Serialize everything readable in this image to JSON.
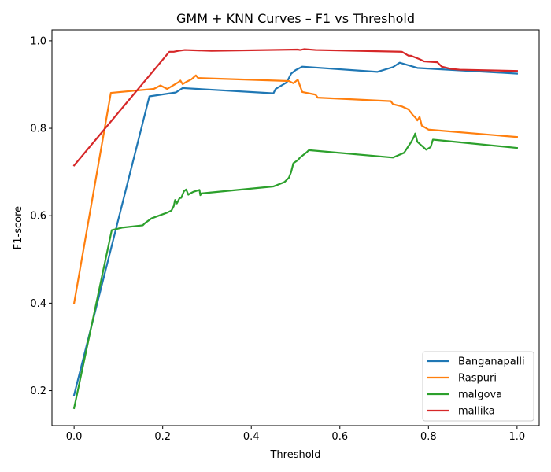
{
  "chart_data": {
    "type": "line",
    "title": "GMM + KNN Curves – F1 vs Threshold",
    "xlabel": "Threshold",
    "ylabel": "F1-score",
    "xlim": [
      -0.05,
      1.05
    ],
    "ylim": [
      0.12,
      1.025
    ],
    "xticks": [
      0.0,
      0.2,
      0.4,
      0.6,
      0.8,
      1.0
    ],
    "xtick_labels": [
      "0.0",
      "0.2",
      "0.4",
      "0.6",
      "0.8",
      "1.0"
    ],
    "yticks": [
      0.2,
      0.4,
      0.6,
      0.8,
      1.0
    ],
    "ytick_labels": [
      "0.2",
      "0.4",
      "0.6",
      "0.8",
      "1.0"
    ],
    "grid": false,
    "legend_position": "lower-right",
    "series": [
      {
        "name": "Banganapalli",
        "color": "#1f77b4",
        "x": [
          0.0,
          0.17,
          0.23,
          0.245,
          0.45,
          0.455,
          0.48,
          0.49,
          0.5,
          0.515,
          0.685,
          0.72,
          0.735,
          0.775,
          1.0
        ],
        "y": [
          0.19,
          0.873,
          0.882,
          0.892,
          0.88,
          0.89,
          0.905,
          0.925,
          0.933,
          0.941,
          0.929,
          0.94,
          0.95,
          0.938,
          0.925
        ]
      },
      {
        "name": "Raspuri",
        "color": "#ff7f0e",
        "x": [
          0.0,
          0.083,
          0.18,
          0.195,
          0.21,
          0.235,
          0.24,
          0.245,
          0.255,
          0.265,
          0.275,
          0.28,
          0.485,
          0.495,
          0.505,
          0.515,
          0.545,
          0.55,
          0.715,
          0.72,
          0.74,
          0.755,
          0.765,
          0.77,
          0.775,
          0.78,
          0.785,
          0.8,
          1.0
        ],
        "y": [
          0.4,
          0.881,
          0.89,
          0.898,
          0.89,
          0.905,
          0.909,
          0.901,
          0.907,
          0.912,
          0.921,
          0.915,
          0.908,
          0.903,
          0.911,
          0.883,
          0.877,
          0.87,
          0.862,
          0.855,
          0.85,
          0.843,
          0.83,
          0.825,
          0.818,
          0.826,
          0.806,
          0.797,
          0.78
        ]
      },
      {
        "name": "malgova",
        "color": "#2ca02c",
        "x": [
          0.0,
          0.085,
          0.11,
          0.155,
          0.16,
          0.175,
          0.21,
          0.22,
          0.225,
          0.228,
          0.232,
          0.238,
          0.242,
          0.248,
          0.253,
          0.258,
          0.262,
          0.27,
          0.283,
          0.285,
          0.287,
          0.45,
          0.475,
          0.485,
          0.49,
          0.495,
          0.505,
          0.51,
          0.525,
          0.53,
          0.72,
          0.745,
          0.76,
          0.765,
          0.768,
          0.77,
          0.775,
          0.795,
          0.805,
          0.81,
          1.0
        ],
        "y": [
          0.16,
          0.567,
          0.573,
          0.578,
          0.583,
          0.594,
          0.607,
          0.612,
          0.622,
          0.636,
          0.628,
          0.64,
          0.641,
          0.656,
          0.66,
          0.648,
          0.651,
          0.655,
          0.659,
          0.647,
          0.651,
          0.667,
          0.677,
          0.687,
          0.7,
          0.72,
          0.727,
          0.733,
          0.745,
          0.75,
          0.733,
          0.744,
          0.767,
          0.776,
          0.782,
          0.788,
          0.769,
          0.751,
          0.757,
          0.774,
          0.755
        ]
      },
      {
        "name": "mallika",
        "color": "#d62728",
        "x": [
          0.0,
          0.215,
          0.225,
          0.235,
          0.25,
          0.31,
          0.505,
          0.51,
          0.52,
          0.545,
          0.74,
          0.755,
          0.76,
          0.77,
          0.78,
          0.79,
          0.82,
          0.83,
          0.85,
          0.87,
          1.0
        ],
        "y": [
          0.715,
          0.975,
          0.975,
          0.977,
          0.979,
          0.977,
          0.98,
          0.979,
          0.981,
          0.979,
          0.975,
          0.966,
          0.966,
          0.962,
          0.958,
          0.953,
          0.951,
          0.941,
          0.936,
          0.934,
          0.931
        ]
      }
    ]
  }
}
